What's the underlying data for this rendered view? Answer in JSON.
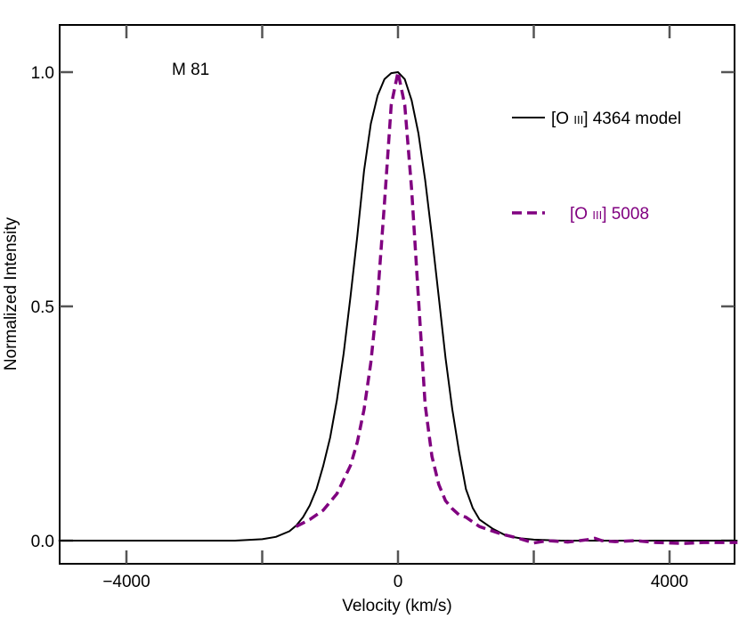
{
  "chart_data": {
    "type": "line",
    "title": "",
    "xlabel": "Velocity (km/s)",
    "ylabel": "Normalized Intensity",
    "xlim": [
      -5000,
      5000
    ],
    "ylim": [
      -0.05,
      1.1
    ],
    "xticks": [
      -4000,
      0,
      4000
    ],
    "xtick_labels": [
      "−4000",
      "0",
      "4000"
    ],
    "yticks": [
      0.0,
      0.5,
      1.0
    ],
    "ytick_labels": [
      "0.0",
      "0.5",
      "1.0"
    ],
    "grid": false,
    "legend_position": "top-right",
    "annotation": "M 81",
    "colors": {
      "model": "#000000",
      "observed": "#800080"
    },
    "series": [
      {
        "name": "[O III] 4364 model",
        "label_parts": [
          "[O ",
          "III",
          "] 4364 model"
        ],
        "style": "solid",
        "x": [
          -5000,
          -3000,
          -2400,
          -2000,
          -1800,
          -1600,
          -1500,
          -1400,
          -1300,
          -1200,
          -1100,
          -1000,
          -900,
          -800,
          -700,
          -600,
          -500,
          -400,
          -300,
          -200,
          -100,
          0,
          100,
          200,
          300,
          400,
          500,
          600,
          700,
          800,
          900,
          1000,
          1100,
          1200,
          1400,
          1600,
          1800,
          2000,
          2400,
          3000,
          5000
        ],
        "y": [
          0.0,
          0.0,
          0.0,
          0.003,
          0.008,
          0.02,
          0.032,
          0.05,
          0.075,
          0.11,
          0.16,
          0.22,
          0.3,
          0.4,
          0.52,
          0.65,
          0.79,
          0.89,
          0.95,
          0.985,
          0.998,
          1.0,
          0.985,
          0.94,
          0.87,
          0.77,
          0.65,
          0.52,
          0.39,
          0.28,
          0.19,
          0.11,
          0.07,
          0.045,
          0.025,
          0.01,
          0.005,
          0.002,
          0.0,
          0.0,
          0.0
        ]
      },
      {
        "name": "[O III] 5008",
        "label_parts": [
          "[O ",
          "III",
          "] 5008"
        ],
        "style": "dashed",
        "x": [
          -1500,
          -1300,
          -1100,
          -900,
          -700,
          -600,
          -500,
          -400,
          -300,
          -200,
          -100,
          0,
          100,
          200,
          300,
          400,
          500,
          600,
          700,
          800,
          900,
          1000,
          1200,
          1500,
          1800,
          2000,
          2200,
          2500,
          2800,
          2900,
          3000,
          3200,
          3500,
          3800,
          4200,
          4500,
          5000
        ],
        "y": [
          0.03,
          0.045,
          0.065,
          0.1,
          0.16,
          0.21,
          0.28,
          0.38,
          0.52,
          0.72,
          0.93,
          1.0,
          0.93,
          0.75,
          0.52,
          0.29,
          0.18,
          0.12,
          0.085,
          0.068,
          0.055,
          0.05,
          0.03,
          0.015,
          0.004,
          -0.005,
          0.0,
          -0.003,
          0.002,
          0.005,
          0.0,
          -0.002,
          0.0,
          -0.004,
          -0.006,
          -0.004,
          -0.004
        ]
      }
    ]
  }
}
